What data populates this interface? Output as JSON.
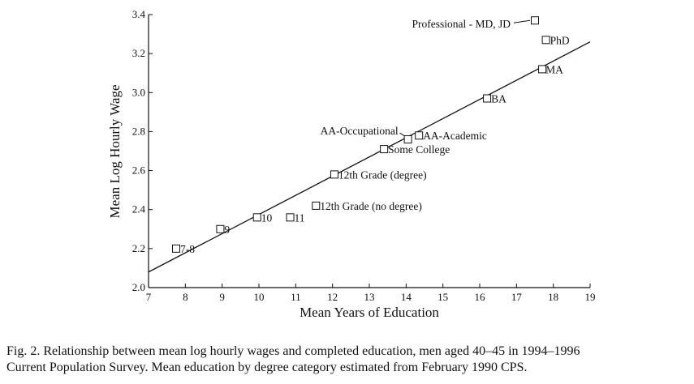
{
  "caption": {
    "line1": "Fig. 2.  Relationship between mean log hourly wages and completed education, men aged 40–45 in 1994–1996",
    "line2": "Current Population Survey. Mean education by degree category estimated from February 1990 CPS."
  },
  "chart_data": {
    "type": "scatter",
    "xlabel": "Mean Years of Education",
    "ylabel": "Mean Log Hourly Wage",
    "xlim": [
      7,
      19
    ],
    "ylim": [
      2.0,
      3.4
    ],
    "xticks": [
      "7",
      "8",
      "9",
      "10",
      "11",
      "12",
      "13",
      "14",
      "15",
      "16",
      "17",
      "18",
      "19"
    ],
    "yticks": [
      "2.0",
      "2.2",
      "2.4",
      "2.6",
      "2.8",
      "3.0",
      "3.2",
      "3.4"
    ],
    "marker": "open-square",
    "grid": false,
    "points": [
      {
        "label": "7-8",
        "x": 7.75,
        "y": 2.2
      },
      {
        "label": "9",
        "x": 8.95,
        "y": 2.3
      },
      {
        "label": "10",
        "x": 9.95,
        "y": 2.36
      },
      {
        "label": "11",
        "x": 10.85,
        "y": 2.36
      },
      {
        "label": "12th Grade (no degree)",
        "x": 11.55,
        "y": 2.42
      },
      {
        "label": "12th Grade (degree)",
        "x": 12.05,
        "y": 2.58
      },
      {
        "label": "Some College",
        "x": 13.4,
        "y": 2.71
      },
      {
        "label": "AA-Occupational",
        "x": 14.05,
        "y": 2.76
      },
      {
        "label": "AA-Academic",
        "x": 14.35,
        "y": 2.78
      },
      {
        "label": "BA",
        "x": 16.2,
        "y": 2.97
      },
      {
        "label": "MA",
        "x": 17.7,
        "y": 3.12
      },
      {
        "label": "PhD",
        "x": 17.8,
        "y": 3.27
      },
      {
        "label": "Professional - MD, JD",
        "x": 17.5,
        "y": 3.37
      }
    ],
    "fit_line": {
      "x": [
        7,
        19
      ],
      "y": [
        2.08,
        3.26
      ]
    }
  }
}
